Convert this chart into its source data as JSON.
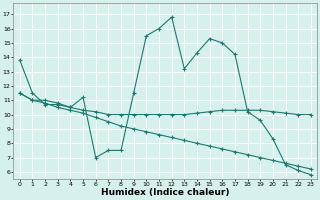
{
  "title": "",
  "xlabel": "Humidex (Indice chaleur)",
  "ylabel": "",
  "background_color": "#d6f0ee",
  "grid_color": "#ffffff",
  "line_color": "#1a7a6e",
  "xlim": [
    -0.5,
    23.5
  ],
  "ylim": [
    5.5,
    17.8
  ],
  "xticks": [
    0,
    1,
    2,
    3,
    4,
    5,
    6,
    7,
    8,
    9,
    10,
    11,
    12,
    13,
    14,
    15,
    16,
    17,
    18,
    19,
    20,
    21,
    22,
    23
  ],
  "yticks": [
    6,
    7,
    8,
    9,
    10,
    11,
    12,
    13,
    14,
    15,
    16,
    17
  ],
  "series1_x": [
    0,
    1,
    2,
    3,
    4,
    5,
    6,
    7,
    8,
    9,
    10,
    11,
    12,
    13,
    14,
    15,
    16,
    17,
    18,
    19,
    20,
    21,
    22,
    23
  ],
  "series1_y": [
    13.8,
    11.5,
    10.7,
    10.7,
    10.5,
    11.2,
    7.0,
    7.5,
    7.5,
    11.5,
    15.5,
    16.0,
    16.8,
    13.2,
    14.3,
    15.3,
    15.0,
    14.2,
    10.2,
    9.6,
    8.3,
    6.5,
    6.1,
    5.8
  ],
  "series2_x": [
    0,
    1,
    2,
    3,
    4,
    5,
    6,
    7,
    8,
    9,
    10,
    11,
    12,
    13,
    14,
    15,
    16,
    17,
    18,
    19,
    20,
    21,
    22,
    23
  ],
  "series2_y": [
    11.5,
    11.0,
    11.0,
    10.8,
    10.5,
    10.3,
    10.2,
    10.0,
    10.0,
    10.0,
    10.0,
    10.0,
    10.0,
    10.0,
    10.1,
    10.2,
    10.3,
    10.3,
    10.3,
    10.3,
    10.2,
    10.1,
    10.0,
    10.0
  ],
  "series3_x": [
    0,
    1,
    2,
    3,
    4,
    5,
    6,
    7,
    8,
    9,
    10,
    11,
    12,
    13,
    14,
    15,
    16,
    17,
    18,
    19,
    20,
    21,
    22,
    23
  ],
  "series3_y": [
    11.5,
    11.0,
    10.8,
    10.5,
    10.3,
    10.1,
    9.8,
    9.5,
    9.2,
    9.0,
    8.8,
    8.6,
    8.4,
    8.2,
    8.0,
    7.8,
    7.6,
    7.4,
    7.2,
    7.0,
    6.8,
    6.6,
    6.4,
    6.2
  ],
  "tick_fontsize": 4.5,
  "xlabel_fontsize": 6.5,
  "lw": 0.8,
  "marker_size": 2.5
}
